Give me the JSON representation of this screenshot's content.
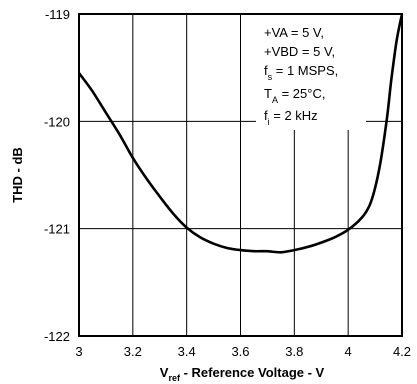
{
  "chart_data": {
    "type": "line",
    "title": "",
    "xlabel": {
      "main": "V",
      "sub": "ref",
      "rest": " - Reference Voltage -  V"
    },
    "ylabel": "THD - dB",
    "xlim": [
      3,
      4.2
    ],
    "ylim": [
      -122,
      -119
    ],
    "x_ticks": [
      "3",
      "3.2",
      "3.4",
      "3.6",
      "3.8",
      "4",
      "4.2"
    ],
    "y_ticks": [
      "-119",
      "-120",
      "-121",
      "-122"
    ],
    "grid": true,
    "series": [
      {
        "name": "",
        "x": [
          3.0,
          3.05,
          3.1,
          3.15,
          3.2,
          3.25,
          3.3,
          3.35,
          3.4,
          3.45,
          3.5,
          3.55,
          3.6,
          3.65,
          3.7,
          3.75,
          3.8,
          3.85,
          3.9,
          3.95,
          4.0,
          4.05,
          4.08,
          4.1,
          4.12,
          4.14,
          4.15,
          4.16,
          4.18,
          4.2
        ],
        "y": [
          -119.55,
          -119.72,
          -119.92,
          -120.12,
          -120.34,
          -120.53,
          -120.7,
          -120.86,
          -120.99,
          -121.08,
          -121.14,
          -121.18,
          -121.2,
          -121.21,
          -121.21,
          -121.22,
          -121.2,
          -121.17,
          -121.13,
          -121.08,
          -121.01,
          -120.9,
          -120.78,
          -120.62,
          -120.38,
          -120.05,
          -119.85,
          -119.62,
          -119.25,
          -118.95
        ]
      }
    ],
    "annotation_lines": [
      {
        "main": "+VA = 5 V,"
      },
      {
        "main": "+VBD = 5 V,"
      },
      {
        "main": "f",
        "sub": "s",
        "rest": " = 1 MSPS,"
      },
      {
        "main": "T",
        "sub": "A",
        "rest": " = 25°C,"
      },
      {
        "main": "f",
        "sub": "i",
        "rest": " = 2 kHz"
      }
    ]
  }
}
